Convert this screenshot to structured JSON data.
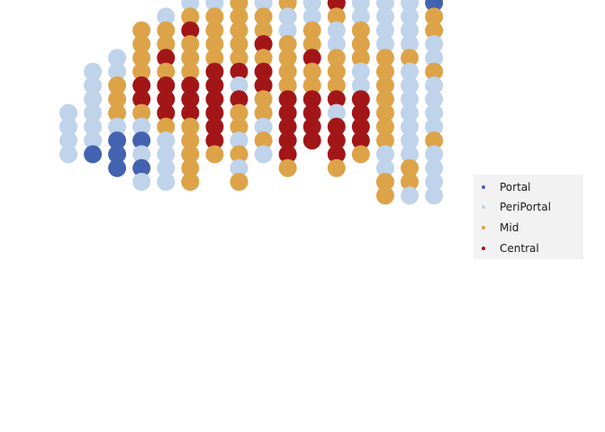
{
  "chart_data": {
    "type": "scatter",
    "title": "",
    "xlabel": "",
    "ylabel": "",
    "grid": false,
    "axes": false,
    "legend_position": "right",
    "series": [
      {
        "name": "Portal",
        "color": "#4363b1"
      },
      {
        "name": "PeriPortal",
        "color": "#bfd3ea"
      },
      {
        "name": "Mid",
        "color": "#dda349"
      },
      {
        "name": "Central",
        "color": "#a31618"
      }
    ],
    "columns": [
      {
        "x": 1,
        "y_top": 16,
        "codes": "PPPP"
      },
      {
        "x": 2,
        "y_top": 19,
        "codes": "PPPPPPO"
      },
      {
        "x": 3,
        "y_top": 20,
        "codes": "PPMMMPOOO"
      },
      {
        "x": 4,
        "y_top": 22,
        "codes": "MMMMCCMPOPOP"
      },
      {
        "x": 5,
        "y_top": 23,
        "codes": "PMMCMCCCMPPPP"
      },
      {
        "x": 6,
        "y_top": 24,
        "codes": "PMCMMMCCCMMMMM"
      },
      {
        "x": 7,
        "y_top": 26,
        "codes": "CCPMMMMCCCCCCM"
      },
      {
        "x": 8,
        "y_top": 27,
        "codes": "MMCMMMMMCPCMMPMPM"
      },
      {
        "x": 9,
        "y_top": 28,
        "codes": "MPMMPMMCMCCMMPMP"
      },
      {
        "x": 10,
        "y_top": 30,
        "codes": "PPPMMMMPPMMMMCCCCCM"
      },
      {
        "x": 11,
        "y_top": 31,
        "codes": "PPPMCMPPPMMCMMCCCC"
      },
      {
        "x": 12,
        "y_top": 32,
        "codes": "PPPPPMCCCMPPMMMCPCCCM"
      },
      {
        "x": 13,
        "y_top": 33,
        "codes": "MMPPPPPMMPPMMMPPCCCCM"
      },
      {
        "x": 14,
        "y_top": 35,
        "codes": "PMCMPPPPPPMPPPPMMMMMMMPPMM"
      },
      {
        "x": 15,
        "y_top": 36,
        "codes": "MMMPPPPPPPPPPPPPMPPPPPPPMMP"
      },
      {
        "x": 16,
        "y_top": 37,
        "codes": "MMMMMMMPPPPPPOMMPPMPPPPMPPPP"
      }
    ]
  }
}
